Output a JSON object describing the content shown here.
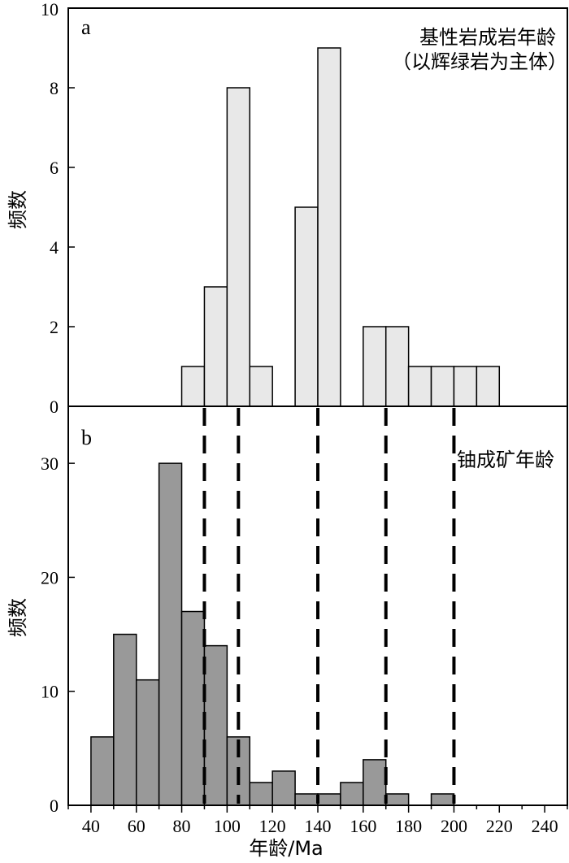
{
  "x_axis_label": "年龄/Ma",
  "chart_data": [
    {
      "type": "bar",
      "panel": "a",
      "annotation_lines": [
        "基性岩成岩年龄",
        "（以辉绿岩为主体）"
      ],
      "ylabel": "频数",
      "xlabel": "",
      "xlim": [
        30,
        250
      ],
      "ylim": [
        0,
        10
      ],
      "yticks": [
        0,
        2,
        4,
        6,
        8,
        10
      ],
      "bin_width": 10,
      "bar_color": "#e8e8e8",
      "bins": [
        {
          "start": 80,
          "count": 1
        },
        {
          "start": 90,
          "count": 3
        },
        {
          "start": 100,
          "count": 8
        },
        {
          "start": 110,
          "count": 1
        },
        {
          "start": 130,
          "count": 5
        },
        {
          "start": 140,
          "count": 9
        },
        {
          "start": 160,
          "count": 2
        },
        {
          "start": 170,
          "count": 2
        },
        {
          "start": 180,
          "count": 1
        },
        {
          "start": 190,
          "count": 1
        },
        {
          "start": 200,
          "count": 1
        },
        {
          "start": 210,
          "count": 1
        }
      ]
    },
    {
      "type": "bar",
      "panel": "b",
      "annotation_lines": [
        "铀成矿年龄"
      ],
      "ylabel": "频数",
      "xlabel": "年龄/Ma",
      "xlim": [
        30,
        250
      ],
      "ylim": [
        0,
        35
      ],
      "yticks": [
        0,
        10,
        20,
        30
      ],
      "xticks": [
        40,
        60,
        80,
        100,
        120,
        140,
        160,
        180,
        200,
        220,
        240
      ],
      "bin_width": 10,
      "bar_color": "#999999",
      "bins": [
        {
          "start": 40,
          "count": 6
        },
        {
          "start": 50,
          "count": 15
        },
        {
          "start": 60,
          "count": 11
        },
        {
          "start": 70,
          "count": 30
        },
        {
          "start": 80,
          "count": 17
        },
        {
          "start": 90,
          "count": 14
        },
        {
          "start": 100,
          "count": 6
        },
        {
          "start": 110,
          "count": 2
        },
        {
          "start": 120,
          "count": 3
        },
        {
          "start": 130,
          "count": 1
        },
        {
          "start": 140,
          "count": 1
        },
        {
          "start": 150,
          "count": 2
        },
        {
          "start": 160,
          "count": 4
        },
        {
          "start": 170,
          "count": 1
        },
        {
          "start": 190,
          "count": 1
        }
      ],
      "reference_lines_x": [
        90,
        105,
        140,
        170,
        200
      ]
    }
  ]
}
